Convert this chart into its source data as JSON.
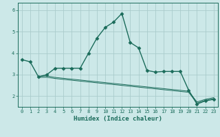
{
  "title": "",
  "xlabel": "Humidex (Indice chaleur)",
  "background_color": "#cce8e8",
  "grid_color": "#aacccc",
  "line_color": "#1a6b5a",
  "xlim": [
    -0.5,
    23.5
  ],
  "ylim": [
    1.5,
    6.35
  ],
  "yticks": [
    2,
    3,
    4,
    5,
    6
  ],
  "xticks": [
    0,
    1,
    2,
    3,
    4,
    5,
    6,
    7,
    8,
    9,
    10,
    11,
    12,
    13,
    14,
    15,
    16,
    17,
    18,
    19,
    20,
    21,
    22,
    23
  ],
  "series": [
    {
      "x": [
        0,
        1,
        2,
        3,
        4,
        5,
        6,
        7,
        8,
        9,
        10,
        11,
        12,
        13,
        14,
        15,
        16,
        17,
        18,
        19,
        20,
        21,
        22,
        23
      ],
      "y": [
        3.7,
        3.6,
        2.9,
        3.0,
        3.3,
        3.3,
        3.3,
        3.3,
        4.0,
        4.7,
        5.2,
        5.45,
        5.85,
        4.5,
        4.25,
        3.2,
        3.12,
        3.15,
        3.15,
        3.15,
        2.28,
        1.63,
        1.78,
        1.85
      ],
      "marker": "D",
      "markersize": 2.5,
      "linewidth": 1.0
    },
    {
      "x": [
        2,
        3,
        4,
        5,
        6,
        7,
        8,
        9,
        10,
        11,
        12,
        13,
        14,
        15,
        16,
        17,
        18,
        19,
        20,
        21,
        22,
        23
      ],
      "y": [
        2.87,
        2.88,
        2.82,
        2.78,
        2.74,
        2.7,
        2.66,
        2.62,
        2.58,
        2.54,
        2.5,
        2.46,
        2.42,
        2.38,
        2.34,
        2.3,
        2.26,
        2.22,
        2.18,
        1.68,
        1.8,
        1.88
      ],
      "marker": null,
      "linewidth": 0.7
    },
    {
      "x": [
        2,
        3,
        4,
        5,
        6,
        7,
        8,
        9,
        10,
        11,
        12,
        13,
        14,
        15,
        16,
        17,
        18,
        19,
        20,
        21,
        22,
        23
      ],
      "y": [
        2.92,
        2.94,
        2.87,
        2.83,
        2.79,
        2.75,
        2.71,
        2.67,
        2.63,
        2.59,
        2.55,
        2.51,
        2.47,
        2.43,
        2.39,
        2.35,
        2.31,
        2.27,
        2.23,
        1.73,
        1.85,
        1.93
      ],
      "marker": null,
      "linewidth": 0.7
    }
  ]
}
